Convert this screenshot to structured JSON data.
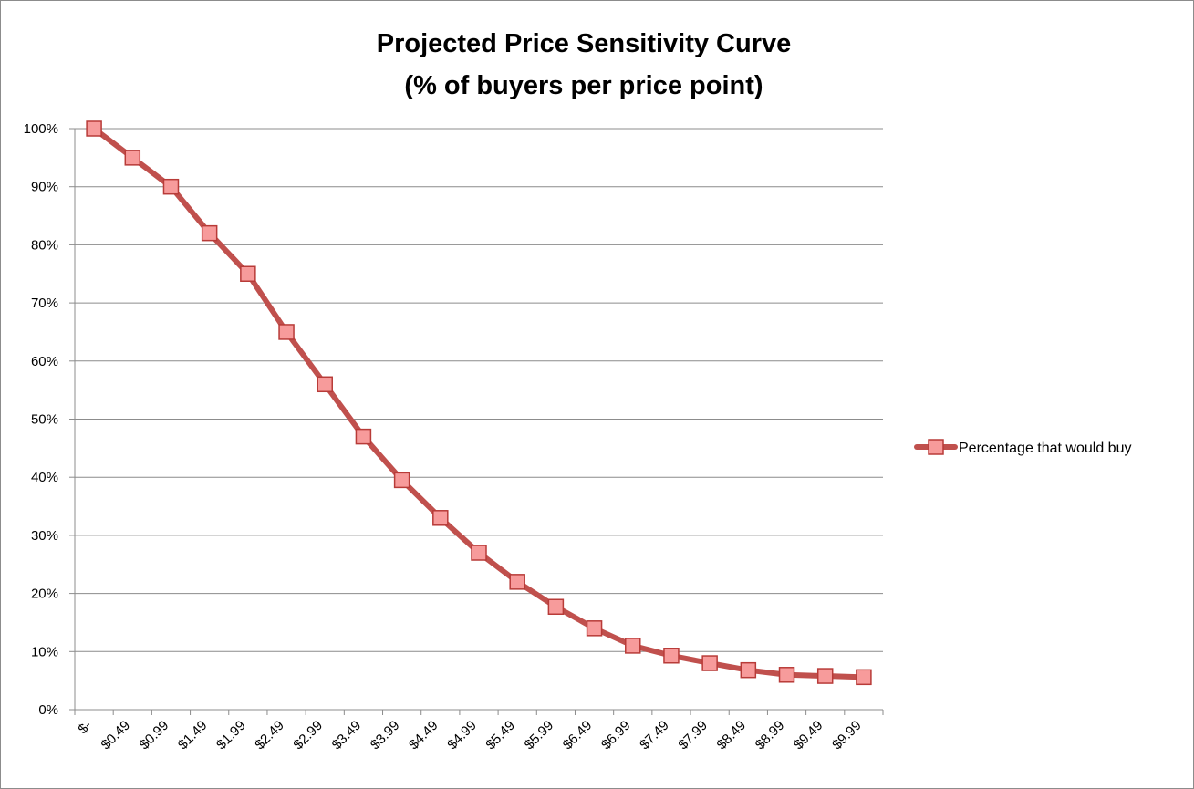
{
  "colors": {
    "line": "#c0504d",
    "marker_fill": "#f79b9b",
    "marker_stroke": "#b83b38",
    "grid": "#8c8c8c"
  },
  "chart_data": {
    "type": "line",
    "title": "Projected Price Sensitivity Curve",
    "subtitle": "(% of buyers per price point)",
    "categories": [
      "$-",
      "$0.49",
      "$0.99",
      "$1.49",
      "$1.99",
      "$2.49",
      "$2.99",
      "$3.49",
      "$3.99",
      "$4.49",
      "$4.99",
      "$5.49",
      "$5.99",
      "$6.49",
      "$6.99",
      "$7.49",
      "$7.99",
      "$8.49",
      "$8.99",
      "$9.49",
      "$9.99"
    ],
    "series": [
      {
        "name": "Percentage that would buy",
        "values": [
          100,
          95,
          90,
          82,
          75,
          65,
          56,
          47,
          39.5,
          33,
          27,
          22,
          17.7,
          14,
          11,
          9.3,
          8,
          6.8,
          6,
          5.8,
          5.6
        ]
      }
    ],
    "ylim": [
      0,
      100
    ],
    "yticks": [
      "0%",
      "10%",
      "20%",
      "30%",
      "40%",
      "50%",
      "60%",
      "70%",
      "80%",
      "90%",
      "100%"
    ],
    "grid": true,
    "legend": "right"
  }
}
